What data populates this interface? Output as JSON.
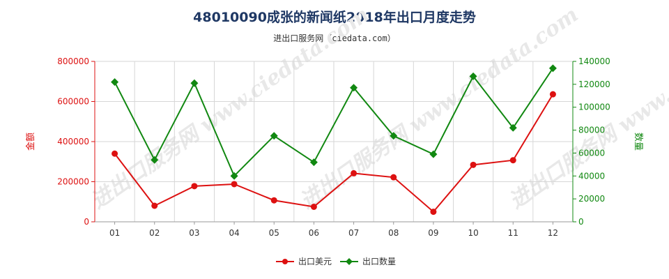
{
  "title": "48010090成张的新闻纸2018年出口月度走势",
  "subtitle": "进出口服务网（ciedata.com）",
  "watermark": "进出口服务网 www.ciedata.com",
  "colors": {
    "left": "#dd1111",
    "right": "#118811",
    "grid": "#d6d6d6",
    "title": "#1f3864"
  },
  "chart_data": {
    "type": "line",
    "categories": [
      "01",
      "02",
      "03",
      "04",
      "05",
      "06",
      "07",
      "08",
      "09",
      "10",
      "11",
      "12"
    ],
    "series": [
      {
        "name": "出口美元",
        "axis": "left",
        "color": "#dd1111",
        "marker": "circle",
        "values": [
          340000,
          80000,
          178000,
          188000,
          107000,
          75000,
          242000,
          222000,
          50000,
          284000,
          307000,
          636000
        ]
      },
      {
        "name": "出口数量",
        "axis": "right",
        "color": "#118811",
        "marker": "diamond",
        "values": [
          122000,
          54000,
          121000,
          40000,
          75000,
          52000,
          117000,
          75000,
          59000,
          127000,
          82000,
          134000
        ]
      }
    ],
    "y_left": {
      "label": "金额",
      "ylim": [
        0,
        800000
      ],
      "ticks": [
        "0",
        "200000",
        "400000",
        "600000",
        "800000"
      ]
    },
    "y_right": {
      "label": "数量",
      "ylim": [
        0,
        140000
      ],
      "ticks": [
        "0",
        "20000",
        "40000",
        "60000",
        "80000",
        "100000",
        "120000",
        "140000"
      ]
    },
    "grid": true,
    "legend": "bottom-center"
  }
}
